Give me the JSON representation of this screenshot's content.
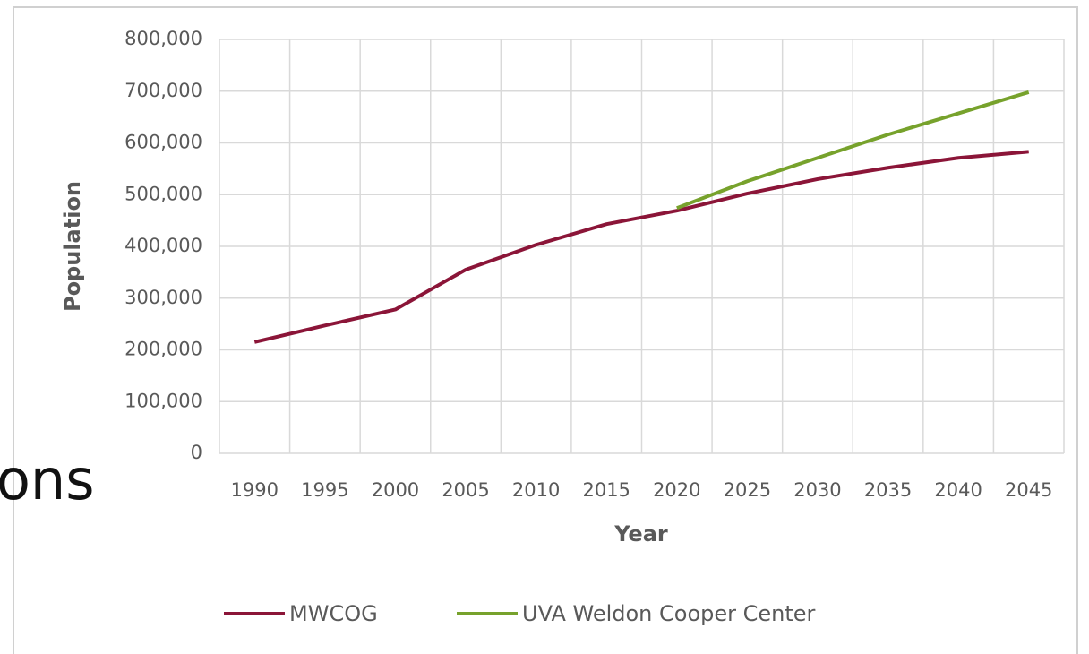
{
  "background_text": "ons",
  "chart_data": {
    "type": "line",
    "categories": [
      "1990",
      "1995",
      "2000",
      "2005",
      "2010",
      "2015",
      "2020",
      "2025",
      "2030",
      "2035",
      "2040",
      "2045"
    ],
    "series": [
      {
        "name": "MWCOG",
        "color": "#8b1538",
        "values": [
          215000,
          247000,
          278000,
          355000,
          403000,
          443000,
          469000,
          502000,
          530000,
          552000,
          571000,
          583000
        ]
      },
      {
        "name": "UVA Weldon Cooper Center",
        "color": "#77a22c",
        "values": [
          null,
          null,
          null,
          null,
          null,
          null,
          474000,
          526000,
          571000,
          616000,
          657000,
          698000
        ]
      }
    ],
    "ylim": [
      0,
      800000
    ],
    "yticks": [
      0,
      {
        "value": 100000,
        "label": "100,000"
      },
      {
        "value": 200000,
        "label": "200,000"
      },
      {
        "value": 300000,
        "label": "300,000"
      },
      {
        "value": 400000,
        "label": "400,000"
      },
      {
        "value": 500000,
        "label": "500,000"
      },
      {
        "value": 600000,
        "label": "600,000"
      },
      {
        "value": 700000,
        "label": "700,000"
      },
      {
        "value": 800000,
        "label": "800,000"
      }
    ],
    "xlabel": "Year",
    "ylabel": "Population",
    "grid": true,
    "legend": "bottom"
  }
}
